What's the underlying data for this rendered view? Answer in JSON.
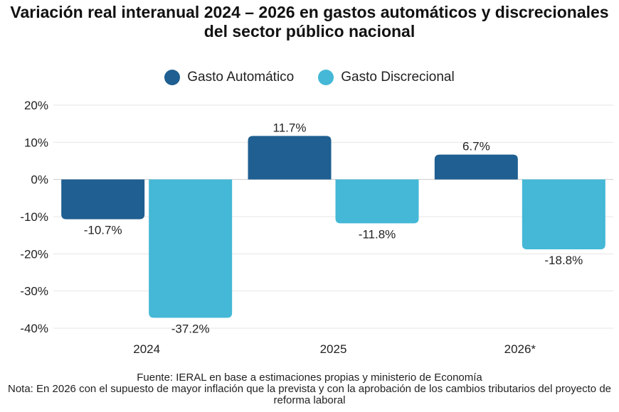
{
  "chart_data": {
    "type": "bar",
    "title": "Variación real interanual 2024 – 2026 en gastos automáticos y discrecionales del sector público nacional",
    "categories": [
      "2024",
      "2025",
      "2026*"
    ],
    "series": [
      {
        "name": "Gasto Automático",
        "color": "#1f5f91",
        "values": [
          -10.7,
          11.7,
          6.7
        ],
        "labels": [
          "-10.7%",
          "11.7%",
          "6.7%"
        ]
      },
      {
        "name": "Gasto Discrecional",
        "color": "#44b8d6",
        "values": [
          -37.2,
          -11.8,
          -18.8
        ],
        "labels": [
          "-37.2%",
          "-11.8%",
          "-18.8%"
        ]
      }
    ],
    "ylim": [
      -40,
      20
    ],
    "yticks": [
      20,
      10,
      0,
      -10,
      -20,
      -30,
      -40
    ],
    "ytick_labels": [
      "20%",
      "10%",
      "0%",
      "-10%",
      "-20%",
      "-30%",
      "-40%"
    ],
    "grid": true,
    "legend": "top-center"
  },
  "notes": {
    "source": "Fuente: IERAL en base a estimaciones propias y ministerio de Economía",
    "note": "Nota: En 2026 con el supuesto de mayor inflación que la prevista y con la aprobación de los cambios tributarios del proyecto de reforma laboral"
  }
}
